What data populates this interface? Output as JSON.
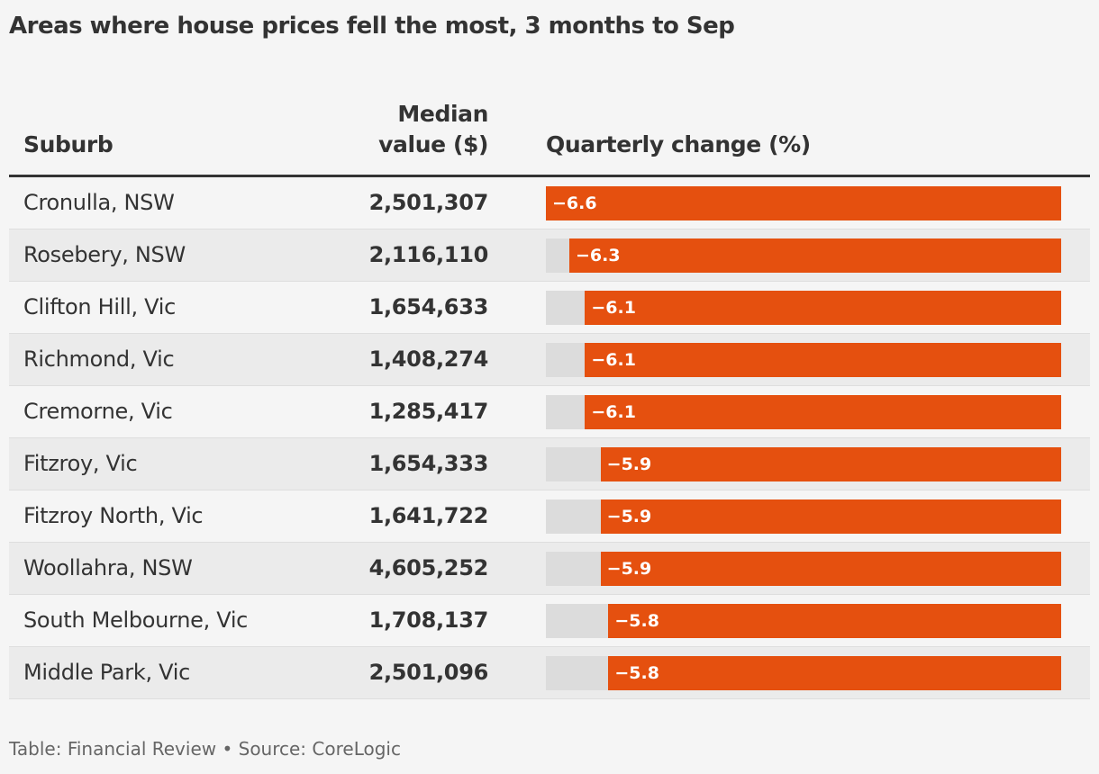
{
  "title": "Areas where house prices fell the most, 3 months to Sep",
  "headers": {
    "suburb": "Suburb",
    "median_line1": "Median",
    "median_line2": "value ($)",
    "change": "Quarterly change (%)"
  },
  "colors": {
    "bar": "#e5500f",
    "track": "#dcdcdc",
    "background": "#f5f5f5"
  },
  "chart_data": {
    "type": "table",
    "title": "Areas where house prices fell the most, 3 months to Sep",
    "columns": [
      "Suburb",
      "Median value ($)",
      "Quarterly change (%)"
    ],
    "bar_range": [
      -6.6,
      0
    ],
    "rows": [
      {
        "suburb": "Cronulla, NSW",
        "median": "2,501,307",
        "change": -6.6,
        "label": "−6.6"
      },
      {
        "suburb": "Rosebery, NSW",
        "median": "2,116,110",
        "change": -6.3,
        "label": "−6.3"
      },
      {
        "suburb": "Clifton Hill, Vic",
        "median": "1,654,633",
        "change": -6.1,
        "label": "−6.1"
      },
      {
        "suburb": "Richmond, Vic",
        "median": "1,408,274",
        "change": -6.1,
        "label": "−6.1"
      },
      {
        "suburb": "Cremorne, Vic",
        "median": "1,285,417",
        "change": -6.1,
        "label": "−6.1"
      },
      {
        "suburb": "Fitzroy, Vic",
        "median": "1,654,333",
        "change": -5.9,
        "label": "−5.9"
      },
      {
        "suburb": "Fitzroy North, Vic",
        "median": "1,641,722",
        "change": -5.9,
        "label": "−5.9"
      },
      {
        "suburb": "Woollahra, NSW",
        "median": "4,605,252",
        "change": -5.9,
        "label": "−5.9"
      },
      {
        "suburb": "South Melbourne, Vic",
        "median": "1,708,137",
        "change": -5.8,
        "label": "−5.8"
      },
      {
        "suburb": "Middle Park, Vic",
        "median": "2,501,096",
        "change": -5.8,
        "label": "−5.8"
      }
    ]
  },
  "footer": "Table: Financial Review • Source: CoreLogic"
}
